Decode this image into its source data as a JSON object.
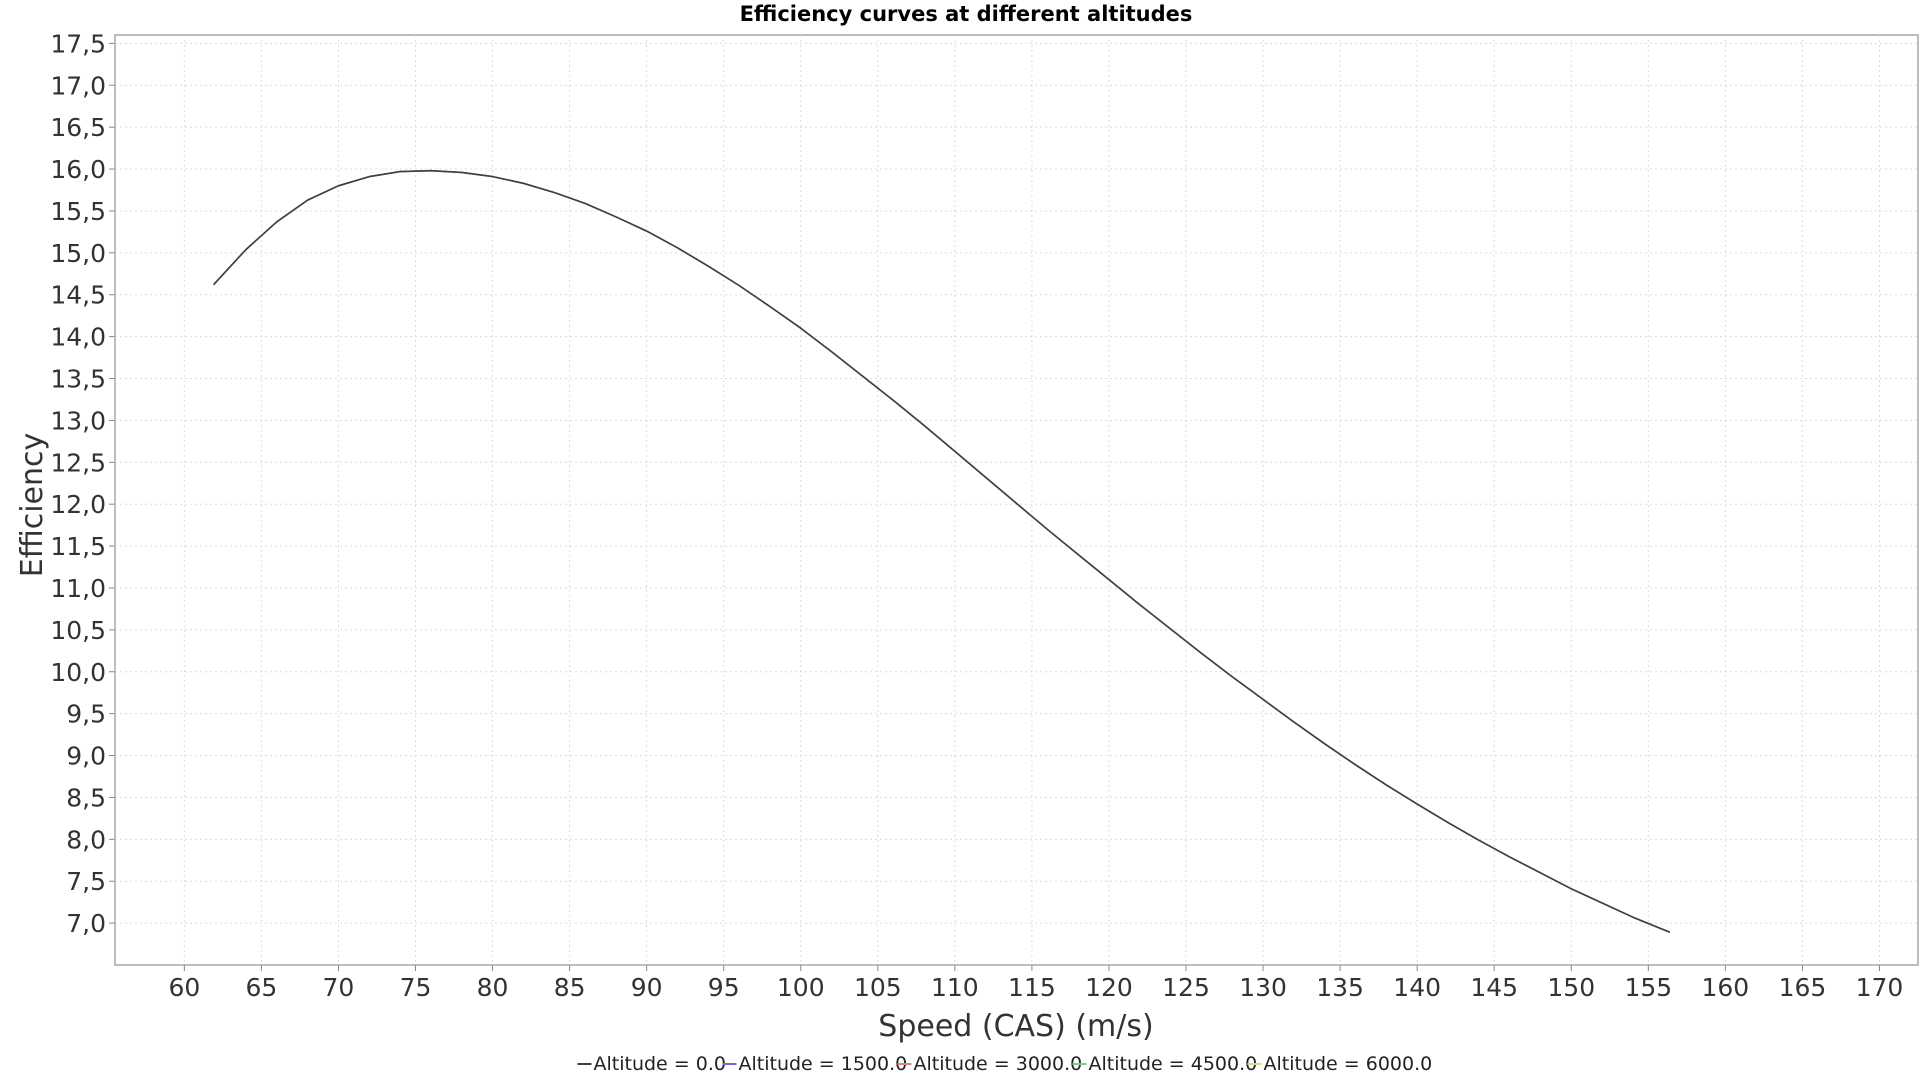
{
  "chart_data": {
    "type": "line",
    "title": "Efficiency curves at different altitudes",
    "xlabel": "Speed (CAS) (m/s)",
    "ylabel": "Efficiency",
    "xlim": [
      55.5,
      172.5
    ],
    "ylim": [
      6.5,
      17.6
    ],
    "xticks": [
      60,
      65,
      70,
      75,
      80,
      85,
      90,
      95,
      100,
      105,
      110,
      115,
      120,
      125,
      130,
      135,
      140,
      145,
      150,
      155,
      160,
      165,
      170
    ],
    "yticks": [
      7.0,
      7.5,
      8.0,
      8.5,
      9.0,
      9.5,
      10.0,
      10.5,
      11.0,
      11.5,
      12.0,
      12.5,
      13.0,
      13.5,
      14.0,
      14.5,
      15.0,
      15.5,
      16.0,
      16.5,
      17.0,
      17.5
    ],
    "x_tick_labels": [
      "60",
      "65",
      "70",
      "75",
      "80",
      "85",
      "90",
      "95",
      "100",
      "105",
      "110",
      "115",
      "120",
      "125",
      "130",
      "135",
      "140",
      "145",
      "150",
      "155",
      "160",
      "165",
      "170"
    ],
    "y_tick_labels": [
      "7,0",
      "7,5",
      "8,0",
      "8,5",
      "9,0",
      "9,5",
      "10,0",
      "10,5",
      "11,0",
      "11,5",
      "12,0",
      "12,5",
      "13,0",
      "13,5",
      "14,0",
      "14,5",
      "15,0",
      "15,5",
      "16,0",
      "16,5",
      "17,0",
      "17,5"
    ],
    "grid": true,
    "legend_position": "bottom",
    "series": [
      {
        "name": "Altitude = 0.0",
        "color": "#404040",
        "x": [
          61.9,
          64,
          66,
          68,
          70,
          72,
          74,
          76,
          78,
          80,
          82,
          84,
          86,
          88,
          90,
          92,
          94,
          96,
          98,
          100,
          102,
          104,
          106,
          108,
          110,
          112,
          114,
          116,
          118,
          120,
          122,
          124,
          126,
          128,
          130,
          132,
          134,
          136,
          138,
          140,
          142,
          144,
          146,
          148,
          150,
          152,
          154,
          156.4
        ],
        "y": [
          14.62,
          15.04,
          15.37,
          15.63,
          15.8,
          15.91,
          15.97,
          15.98,
          15.96,
          15.91,
          15.83,
          15.72,
          15.59,
          15.43,
          15.26,
          15.06,
          14.84,
          14.61,
          14.36,
          14.1,
          13.82,
          13.53,
          13.24,
          12.94,
          12.63,
          12.32,
          12.01,
          11.7,
          11.4,
          11.1,
          10.8,
          10.51,
          10.22,
          9.94,
          9.67,
          9.4,
          9.14,
          8.89,
          8.65,
          8.42,
          8.2,
          7.99,
          7.79,
          7.6,
          7.41,
          7.24,
          7.07,
          6.89
        ]
      },
      {
        "name": "Altitude = 1500.0",
        "color": "#6a6ad8",
        "x": [
          61.9,
          64,
          66,
          68,
          70,
          72,
          74,
          76,
          78,
          80,
          82,
          84,
          86,
          88,
          90,
          92,
          94,
          96,
          98,
          100,
          102,
          104,
          106,
          108,
          110,
          112,
          114,
          116,
          118,
          120,
          122,
          124,
          126,
          128,
          130,
          132,
          134,
          136,
          138,
          140,
          142,
          144,
          146,
          148,
          150,
          152,
          154,
          156.4
        ],
        "y": [
          14.62,
          15.04,
          15.37,
          15.63,
          15.8,
          15.91,
          15.97,
          15.98,
          15.96,
          15.91,
          15.83,
          15.72,
          15.59,
          15.43,
          15.26,
          15.06,
          14.84,
          14.61,
          14.36,
          14.1,
          13.82,
          13.53,
          13.24,
          12.94,
          12.63,
          12.32,
          12.01,
          11.7,
          11.4,
          11.1,
          10.8,
          10.51,
          10.22,
          9.94,
          9.67,
          9.4,
          9.14,
          8.89,
          8.65,
          8.42,
          8.2,
          7.99,
          7.79,
          7.6,
          7.41,
          7.24,
          7.07,
          6.89
        ]
      },
      {
        "name": "Altitude = 3000.0",
        "color": "#e0808a",
        "x": [],
        "y": []
      },
      {
        "name": "Altitude = 4500.0",
        "color": "#80cc80",
        "x": [],
        "y": []
      },
      {
        "name": "Altitude = 6000.0",
        "color": "#d8d890",
        "x": [],
        "y": []
      }
    ]
  }
}
